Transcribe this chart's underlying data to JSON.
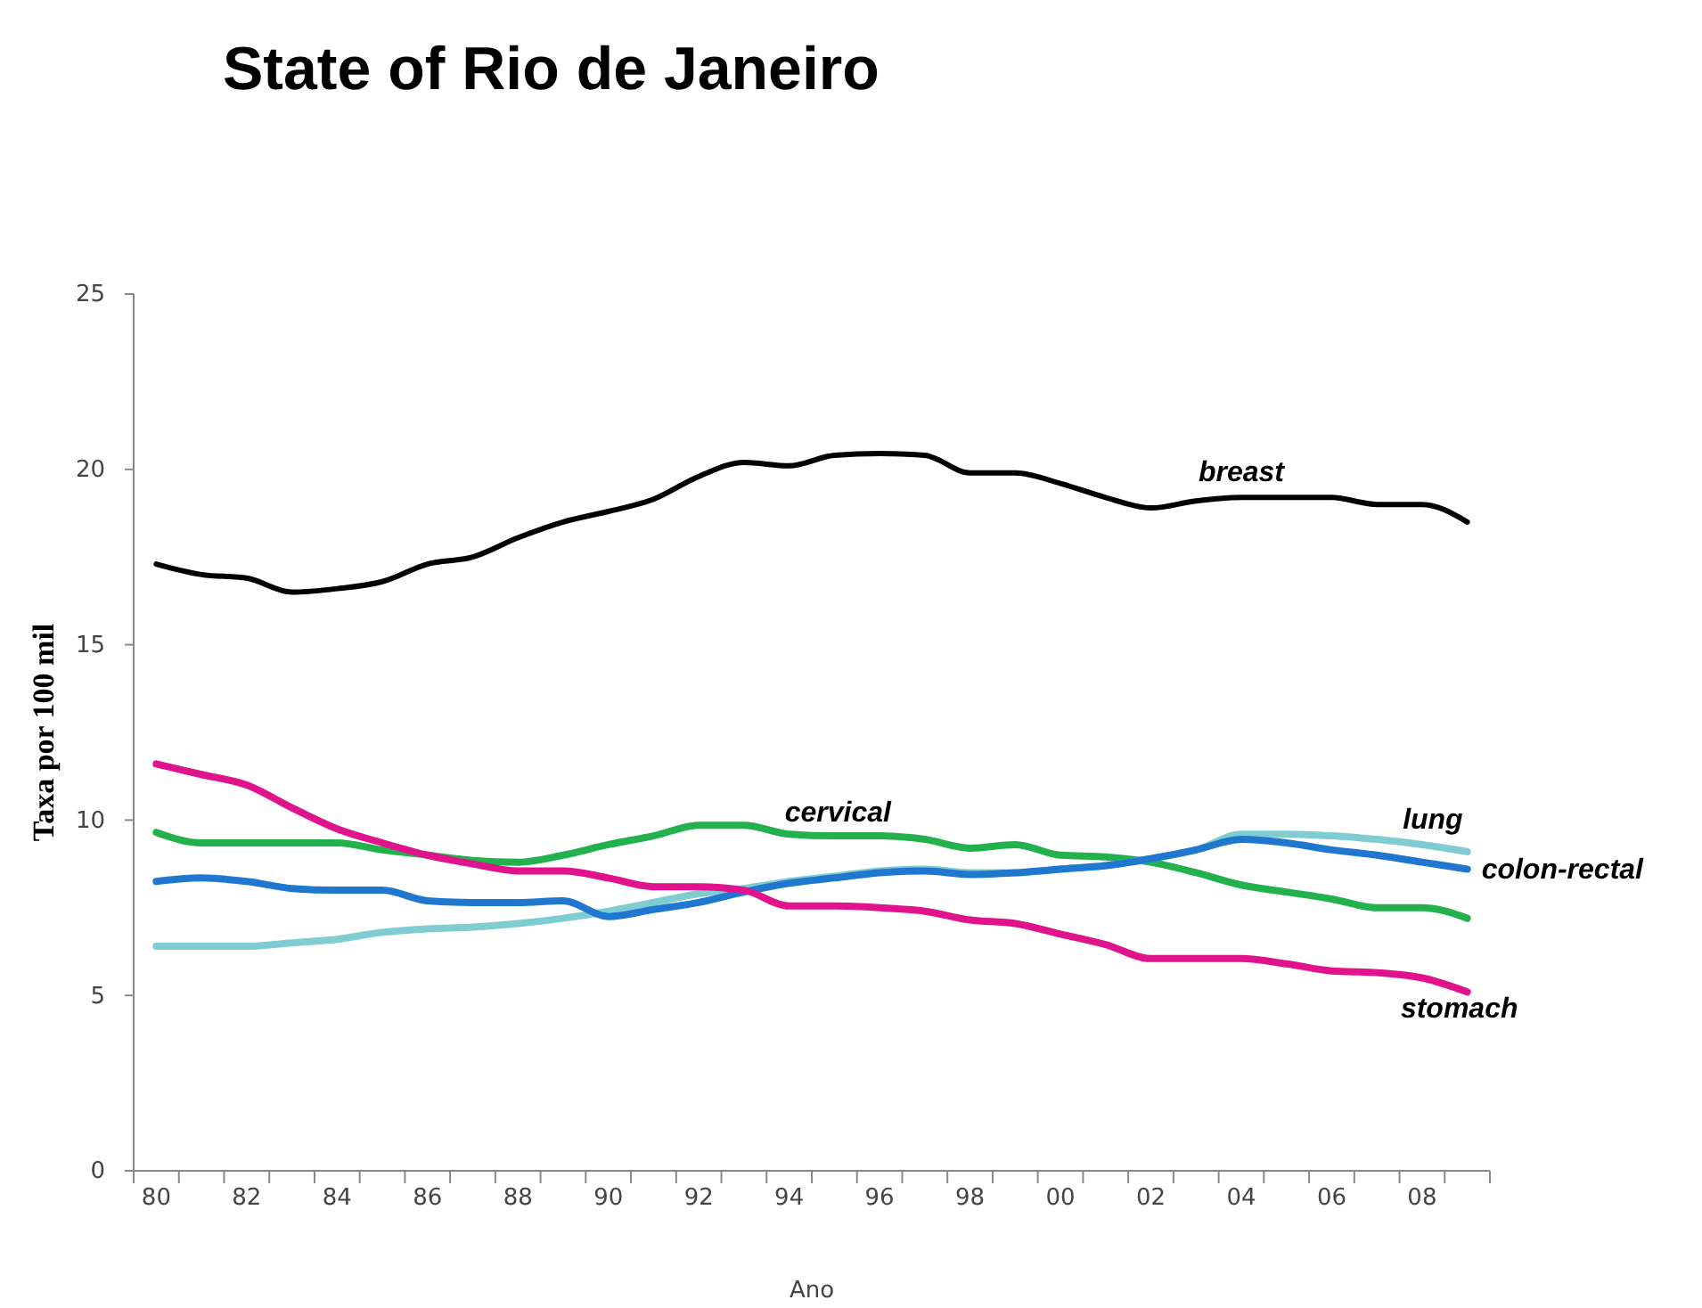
{
  "chart_data": {
    "type": "line",
    "title": "State of Rio de Janeiro",
    "xlabel": "Ano",
    "ylabel": "Taxa por 100 mil",
    "categories": [
      "80",
      null,
      "82",
      null,
      "84",
      null,
      "86",
      null,
      "88",
      null,
      "90",
      null,
      "92",
      null,
      "94",
      null,
      "96",
      null,
      "98",
      null,
      "00",
      null,
      "02",
      null,
      "04",
      null,
      "06",
      null,
      "08",
      null
    ],
    "ylim": [
      0,
      25
    ],
    "yticks": [
      0,
      5,
      10,
      15,
      20,
      25
    ],
    "grid": false,
    "legend": false,
    "series": [
      {
        "name": "breast",
        "color": "#000000",
        "values": [
          17.3,
          17.0,
          16.9,
          16.5,
          16.6,
          16.8,
          17.3,
          17.5,
          18.05,
          18.5,
          18.8,
          19.15,
          19.8,
          20.2,
          20.1,
          20.4,
          20.45,
          20.4,
          19.9,
          19.9,
          19.6,
          19.2,
          18.9,
          19.1,
          19.2,
          19.2,
          19.2,
          19.0,
          19.0,
          18.5
        ]
      },
      {
        "name": "cervical",
        "color": "#22b14c",
        "values": [
          9.65,
          9.35,
          9.35,
          9.35,
          9.35,
          9.15,
          9.0,
          8.85,
          8.8,
          9.0,
          9.3,
          9.55,
          9.85,
          9.85,
          9.6,
          9.55,
          9.55,
          9.45,
          9.2,
          9.3,
          9.0,
          8.95,
          8.8,
          8.5,
          8.15,
          7.95,
          7.75,
          7.5,
          7.5,
          7.2
        ]
      },
      {
        "name": "lung",
        "color": "#7fcdd0",
        "values": [
          6.4,
          6.4,
          6.4,
          6.5,
          6.6,
          6.8,
          6.9,
          6.95,
          7.05,
          7.2,
          7.4,
          7.65,
          7.9,
          8.05,
          8.25,
          8.4,
          8.55,
          8.6,
          8.5,
          8.5,
          8.6,
          8.7,
          8.9,
          9.15,
          9.6,
          9.6,
          9.55,
          9.45,
          9.3,
          9.1
        ]
      },
      {
        "name": "colon-rectal",
        "color": "#1f77d0",
        "values": [
          8.25,
          8.35,
          8.25,
          8.05,
          8.0,
          8.0,
          7.7,
          7.65,
          7.65,
          7.7,
          7.25,
          7.45,
          7.65,
          7.95,
          8.2,
          8.35,
          8.5,
          8.55,
          8.45,
          8.5,
          8.6,
          8.7,
          8.9,
          9.15,
          9.45,
          9.35,
          9.15,
          9.0,
          8.8,
          8.6
        ]
      },
      {
        "name": "stomach",
        "color": "#e0128c",
        "values": [
          11.6,
          11.3,
          11.0,
          10.35,
          9.75,
          9.35,
          9.0,
          8.75,
          8.55,
          8.55,
          8.35,
          8.1,
          8.1,
          8.0,
          7.55,
          7.55,
          7.5,
          7.4,
          7.15,
          7.05,
          6.75,
          6.45,
          6.05,
          6.05,
          6.05,
          5.9,
          5.7,
          5.65,
          5.5,
          5.1
        ]
      }
    ]
  }
}
